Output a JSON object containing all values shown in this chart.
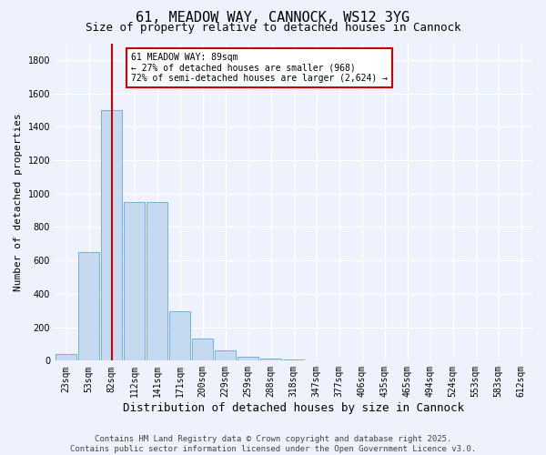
{
  "title": "61, MEADOW WAY, CANNOCK, WS12 3YG",
  "subtitle": "Size of property relative to detached houses in Cannock",
  "xlabel": "Distribution of detached houses by size in Cannock",
  "ylabel": "Number of detached properties",
  "categories": [
    "23sqm",
    "53sqm",
    "82sqm",
    "112sqm",
    "141sqm",
    "171sqm",
    "200sqm",
    "229sqm",
    "259sqm",
    "288sqm",
    "318sqm",
    "347sqm",
    "377sqm",
    "406sqm",
    "435sqm",
    "465sqm",
    "494sqm",
    "524sqm",
    "553sqm",
    "583sqm",
    "612sqm"
  ],
  "values": [
    40,
    650,
    1500,
    950,
    950,
    295,
    130,
    60,
    25,
    15,
    5,
    2,
    1,
    0,
    0,
    0,
    0,
    0,
    0,
    0,
    0
  ],
  "bar_color": "#c5d9f0",
  "bar_edge_color": "#7bafd4",
  "vline_x_index": 2,
  "vline_color": "#cc0000",
  "annotation_line1": "61 MEADOW WAY: 89sqm",
  "annotation_line2": "← 27% of detached houses are smaller (968)",
  "annotation_line3": "72% of semi-detached houses are larger (2,624) →",
  "annotation_box_edgecolor": "#cc0000",
  "annotation_facecolor": "#ffffff",
  "ylim": [
    0,
    1900
  ],
  "yticks": [
    0,
    200,
    400,
    600,
    800,
    1000,
    1200,
    1400,
    1600,
    1800
  ],
  "background_color": "#eef2fc",
  "grid_color": "#ffffff",
  "footer": "Contains HM Land Registry data © Crown copyright and database right 2025.\nContains public sector information licensed under the Open Government Licence v3.0.",
  "title_fontsize": 11,
  "subtitle_fontsize": 9,
  "xlabel_fontsize": 9,
  "ylabel_fontsize": 8,
  "tick_fontsize": 7,
  "annotation_fontsize": 7,
  "footer_fontsize": 6.5
}
